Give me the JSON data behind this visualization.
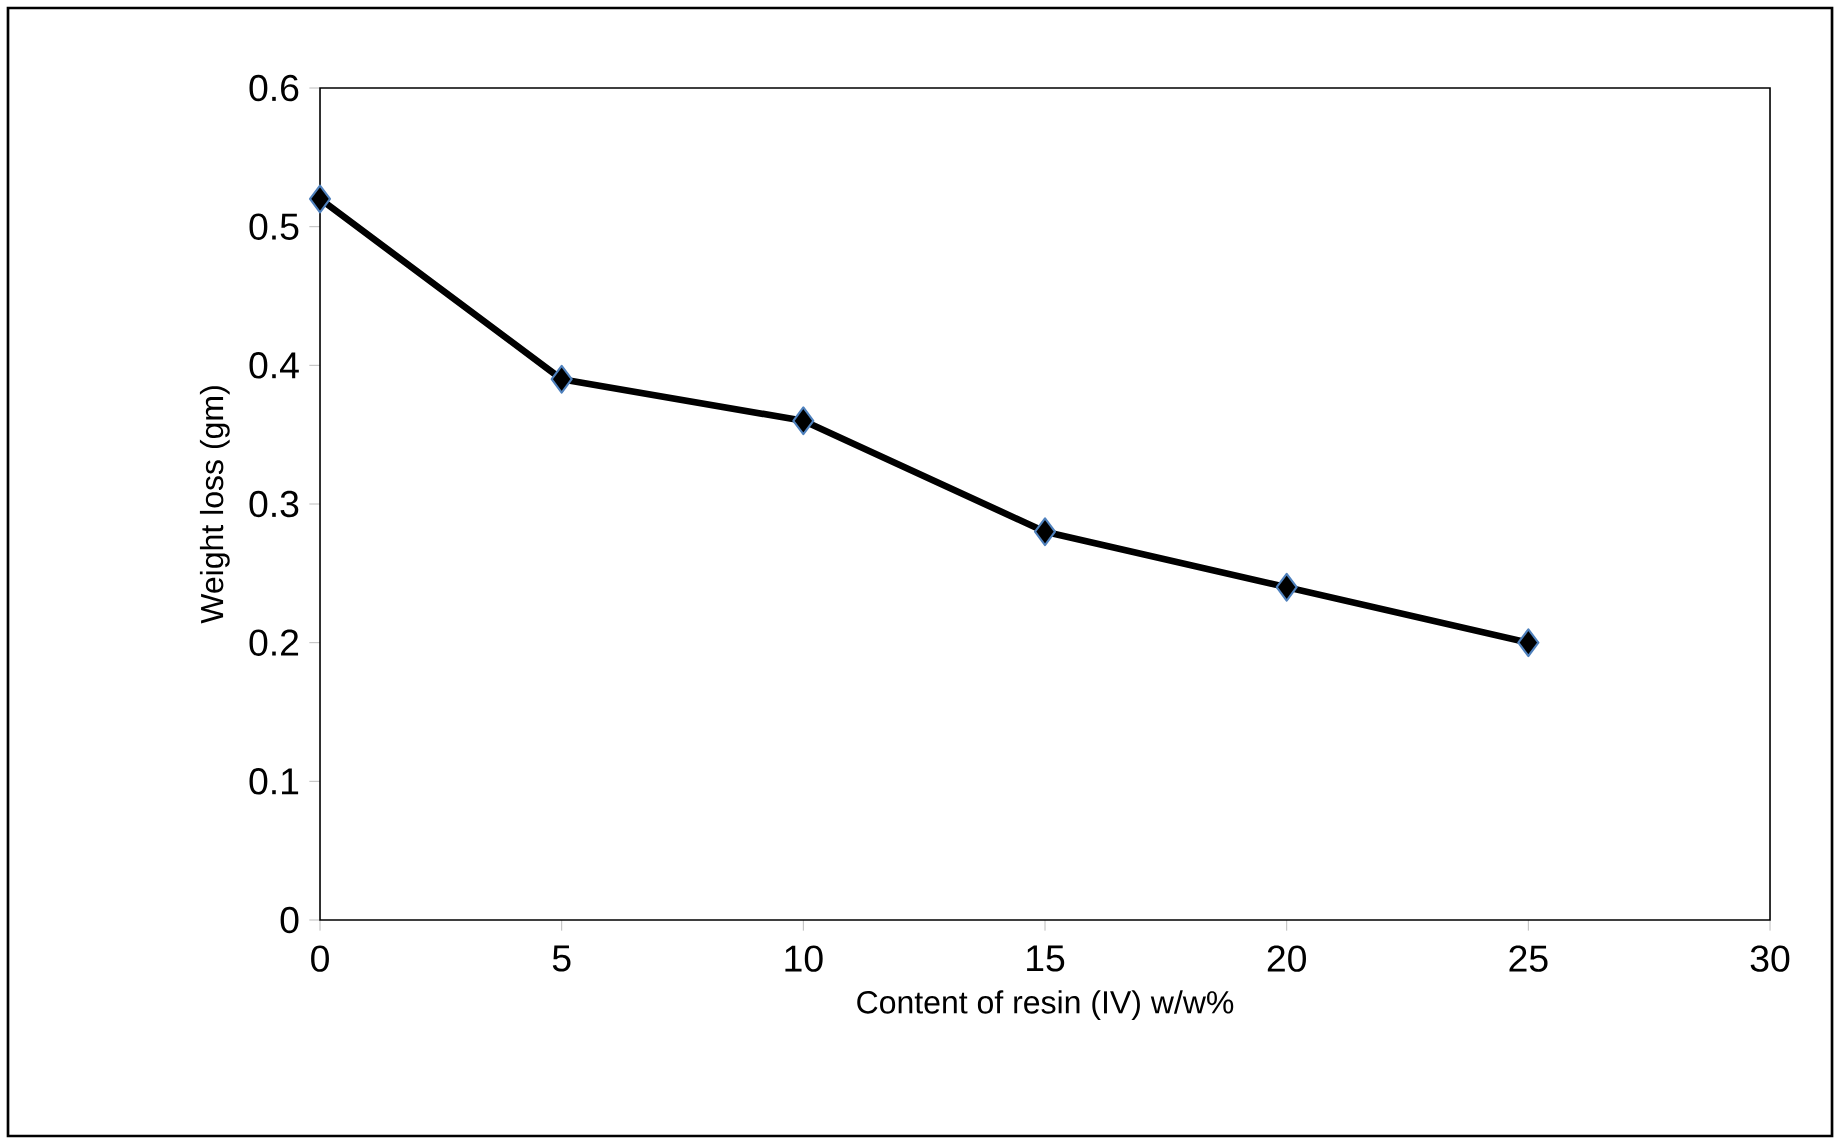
{
  "chart_data": {
    "type": "line",
    "xlabel": "Content of resin (IV) w/w%",
    "ylabel": "Weight loss (gm)",
    "x": [
      0,
      5,
      10,
      15,
      20,
      25
    ],
    "series": [
      {
        "color": "#000000",
        "values": [
          0.52,
          0.39,
          0.36,
          0.28,
          0.24,
          0.2
        ]
      }
    ],
    "xlim": [
      0,
      30
    ],
    "xticks": [
      0,
      5,
      10,
      15,
      20,
      25,
      30
    ],
    "ylim": [
      0,
      0.6
    ],
    "yticks": [
      0,
      0.1,
      0.2,
      0.3,
      0.4,
      0.5,
      0.6
    ],
    "marker": "diamond",
    "line_style": "solid",
    "grid": false,
    "legend": false
  }
}
